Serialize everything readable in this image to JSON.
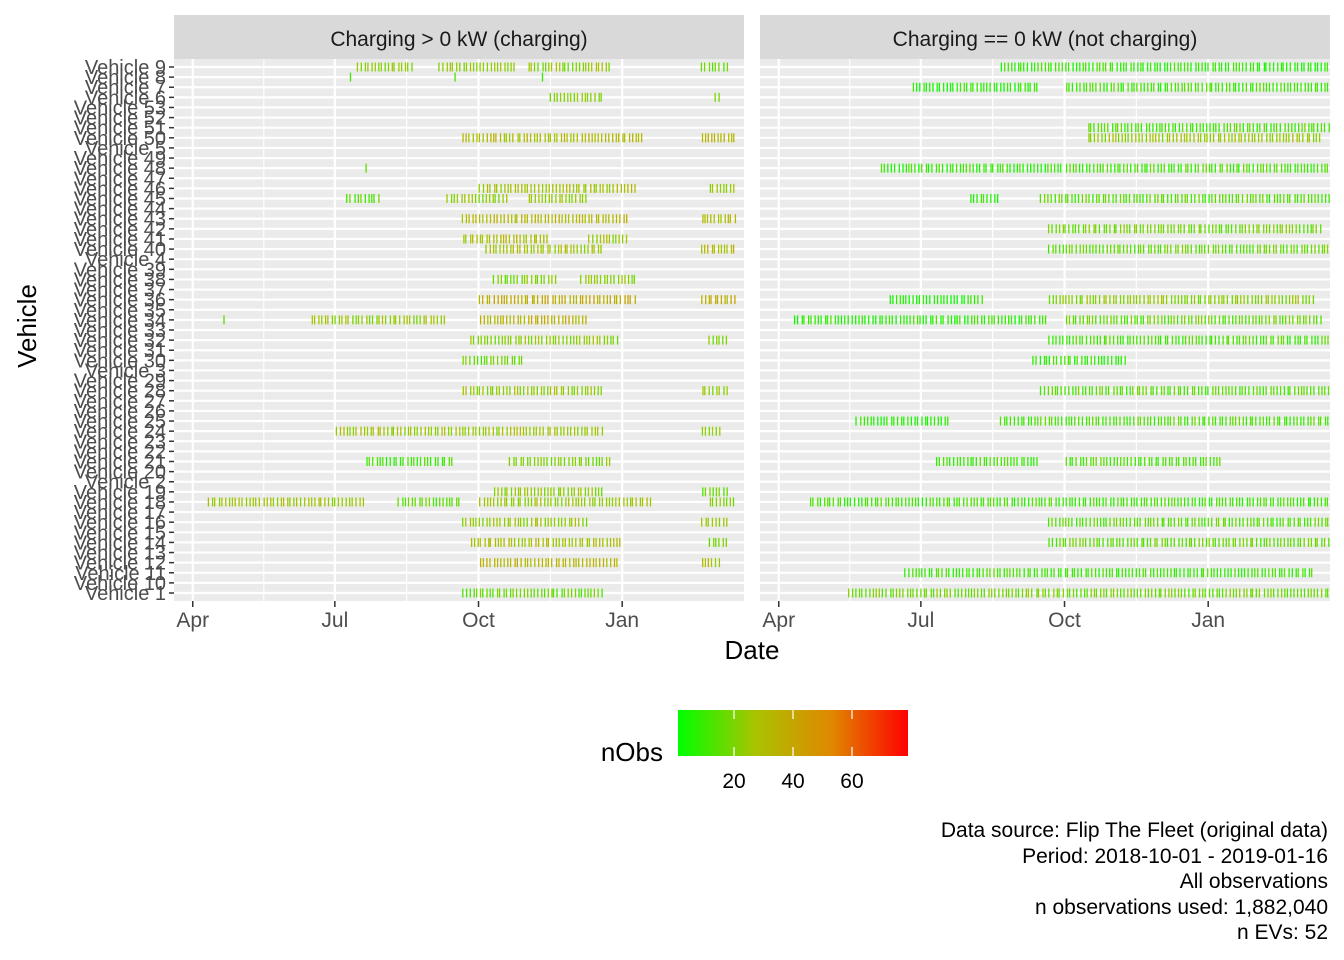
{
  "chart_data": {
    "type": "heatmap",
    "xlabel": "Date",
    "ylabel": "Vehicle",
    "x_ticks": [
      "Apr",
      "Jul",
      "Oct",
      "Jan"
    ],
    "x_tick_dates": [
      "2018-04-01",
      "2018-07-01",
      "2018-10-01",
      "2019-01-01"
    ],
    "xlim": [
      "2018-03-20",
      "2019-03-20"
    ],
    "y_categories": [
      "Vehicle 1",
      "Vehicle 10",
      "Vehicle 11",
      "Vehicle 12",
      "Vehicle 13",
      "Vehicle 14",
      "Vehicle 15",
      "Vehicle 16",
      "Vehicle 17",
      "Vehicle 18",
      "Vehicle 19",
      "Vehicle 2",
      "Vehicle 20",
      "Vehicle 21",
      "Vehicle 22",
      "Vehicle 23",
      "Vehicle 24",
      "Vehicle 25",
      "Vehicle 26",
      "Vehicle 27",
      "Vehicle 28",
      "Vehicle 29",
      "Vehicle 3",
      "Vehicle 30",
      "Vehicle 31",
      "Vehicle 32",
      "Vehicle 33",
      "Vehicle 34",
      "Vehicle 35",
      "Vehicle 36",
      "Vehicle 37",
      "Vehicle 38",
      "Vehicle 39",
      "Vehicle 4",
      "Vehicle 40",
      "Vehicle 41",
      "Vehicle 42",
      "Vehicle 43",
      "Vehicle 44",
      "Vehicle 45",
      "Vehicle 46",
      "Vehicle 47",
      "Vehicle 48",
      "Vehicle 49",
      "Vehicle 5",
      "Vehicle 50",
      "Vehicle 51",
      "Vehicle 52",
      "Vehicle 53",
      "Vehicle 6",
      "Vehicle 7",
      "Vehicle 8",
      "Vehicle 9"
    ],
    "facets": [
      "Charging > 0 kW (charging)",
      "Charging == 0 kW (not charging)"
    ],
    "legend": {
      "title": "nObs",
      "ticks": [
        20,
        40,
        60
      ],
      "range": [
        1,
        79
      ],
      "colors": [
        "#00ff00",
        "#a8c400",
        "#e08800",
        "#ff0000"
      ],
      "placement": "bottom"
    },
    "series": [
      {
        "name": "Charging > 0 kW (charging)",
        "rows": [
          {
            "vehicle": "Vehicle 9",
            "ranges": [
              [
                "2018-07-15",
                "2018-08-20",
                22
              ],
              [
                "2018-09-05",
                "2018-10-25",
                24
              ],
              [
                "2018-11-01",
                "2018-12-25",
                22
              ],
              [
                "2019-02-20",
                "2019-03-10",
                16
              ]
            ]
          },
          {
            "vehicle": "Vehicle 8",
            "ranges": [
              [
                "2018-07-10",
                "2018-07-12",
                6
              ],
              [
                "2018-09-15",
                "2018-09-17",
                6
              ],
              [
                "2018-11-10",
                "2018-11-12",
                6
              ]
            ]
          },
          {
            "vehicle": "Vehicle 6",
            "ranges": [
              [
                "2018-11-15",
                "2018-12-20",
                20
              ],
              [
                "2019-03-01",
                "2019-03-05",
                18
              ]
            ]
          },
          {
            "vehicle": "Vehicle 50",
            "ranges": [
              [
                "2018-09-20",
                "2019-01-15",
                30
              ],
              [
                "2019-02-20",
                "2019-03-15",
                32
              ]
            ]
          },
          {
            "vehicle": "Vehicle 48",
            "ranges": [
              [
                "2018-07-20",
                "2018-07-22",
                10
              ]
            ]
          },
          {
            "vehicle": "Vehicle 46",
            "ranges": [
              [
                "2018-10-01",
                "2019-01-10",
                28
              ],
              [
                "2019-02-25",
                "2019-03-15",
                26
              ]
            ]
          },
          {
            "vehicle": "Vehicle 45",
            "ranges": [
              [
                "2018-07-08",
                "2018-07-30",
                15
              ],
              [
                "2018-09-10",
                "2018-10-20",
                22
              ],
              [
                "2018-11-01",
                "2018-12-10",
                24
              ]
            ]
          },
          {
            "vehicle": "Vehicle 43",
            "ranges": [
              [
                "2018-09-20",
                "2019-01-05",
                32
              ],
              [
                "2019-02-20",
                "2019-03-15",
                30
              ]
            ]
          },
          {
            "vehicle": "Vehicle 41",
            "ranges": [
              [
                "2018-09-20",
                "2018-11-15",
                30
              ],
              [
                "2018-12-10",
                "2019-01-05",
                26
              ]
            ]
          },
          {
            "vehicle": "Vehicle 40",
            "ranges": [
              [
                "2018-10-05",
                "2018-12-20",
                26
              ],
              [
                "2019-02-20",
                "2019-03-15",
                30
              ]
            ]
          },
          {
            "vehicle": "Vehicle 38",
            "ranges": [
              [
                "2018-10-10",
                "2018-11-20",
                20
              ],
              [
                "2018-12-05",
                "2019-01-10",
                22
              ]
            ]
          },
          {
            "vehicle": "Vehicle 36",
            "ranges": [
              [
                "2018-10-01",
                "2019-01-10",
                38
              ],
              [
                "2019-02-20",
                "2019-03-15",
                36
              ]
            ]
          },
          {
            "vehicle": "Vehicle 34",
            "ranges": [
              [
                "2018-04-20",
                "2018-04-22",
                10
              ],
              [
                "2018-06-15",
                "2018-09-10",
                24
              ],
              [
                "2018-10-01",
                "2018-12-10",
                34
              ]
            ]
          },
          {
            "vehicle": "Vehicle 32",
            "ranges": [
              [
                "2018-09-25",
                "2018-12-30",
                22
              ],
              [
                "2019-02-25",
                "2019-03-10",
                20
              ]
            ]
          },
          {
            "vehicle": "Vehicle 30",
            "ranges": [
              [
                "2018-09-20",
                "2018-10-30",
                16
              ]
            ]
          },
          {
            "vehicle": "Vehicle 28",
            "ranges": [
              [
                "2018-09-20",
                "2018-12-20",
                24
              ],
              [
                "2019-02-20",
                "2019-03-10",
                22
              ]
            ]
          },
          {
            "vehicle": "Vehicle 24",
            "ranges": [
              [
                "2018-07-01",
                "2018-12-20",
                26
              ],
              [
                "2019-02-20",
                "2019-03-05",
                22
              ]
            ]
          },
          {
            "vehicle": "Vehicle 21",
            "ranges": [
              [
                "2018-07-20",
                "2018-09-15",
                10
              ],
              [
                "2018-10-20",
                "2018-12-25",
                20
              ]
            ]
          },
          {
            "vehicle": "Vehicle 19",
            "ranges": [
              [
                "2018-10-10",
                "2018-12-20",
                22
              ],
              [
                "2019-02-20",
                "2019-03-10",
                16
              ]
            ]
          },
          {
            "vehicle": "Vehicle 18",
            "ranges": [
              [
                "2018-04-10",
                "2018-07-20",
                26
              ],
              [
                "2018-08-10",
                "2018-09-20",
                14
              ],
              [
                "2018-10-01",
                "2019-01-20",
                24
              ],
              [
                "2019-02-25",
                "2019-03-15",
                22
              ]
            ]
          },
          {
            "vehicle": "Vehicle 16",
            "ranges": [
              [
                "2018-09-20",
                "2018-12-10",
                24
              ],
              [
                "2019-02-20",
                "2019-03-10",
                24
              ]
            ]
          },
          {
            "vehicle": "Vehicle 14",
            "ranges": [
              [
                "2018-09-25",
                "2019-01-01",
                28
              ],
              [
                "2019-02-25",
                "2019-03-10",
                22
              ]
            ]
          },
          {
            "vehicle": "Vehicle 12",
            "ranges": [
              [
                "2018-10-01",
                "2018-12-30",
                34
              ],
              [
                "2019-02-20",
                "2019-03-05",
                30
              ]
            ]
          },
          {
            "vehicle": "Vehicle 1",
            "ranges": [
              [
                "2018-09-20",
                "2018-12-20",
                16
              ]
            ]
          }
        ]
      },
      {
        "name": "Charging == 0 kW (not charging)",
        "rows": [
          {
            "vehicle": "Vehicle 9",
            "ranges": [
              [
                "2018-08-20",
                "2019-03-20",
                8
              ]
            ]
          },
          {
            "vehicle": "Vehicle 7",
            "ranges": [
              [
                "2018-06-25",
                "2018-09-15",
                6
              ],
              [
                "2018-10-01",
                "2019-03-20",
                10
              ]
            ]
          },
          {
            "vehicle": "Vehicle 51",
            "ranges": [
              [
                "2018-10-15",
                "2019-03-20",
                12
              ]
            ]
          },
          {
            "vehicle": "Vehicle 50",
            "ranges": [
              [
                "2018-10-15",
                "2019-03-15",
                24
              ]
            ]
          },
          {
            "vehicle": "Vehicle 48",
            "ranges": [
              [
                "2018-06-05",
                "2018-09-30",
                8
              ],
              [
                "2018-10-01",
                "2019-03-20",
                12
              ]
            ]
          },
          {
            "vehicle": "Vehicle 45",
            "ranges": [
              [
                "2018-08-01",
                "2018-08-20",
                6
              ],
              [
                "2018-09-15",
                "2019-03-20",
                14
              ]
            ]
          },
          {
            "vehicle": "Vehicle 42",
            "ranges": [
              [
                "2018-09-20",
                "2019-03-15",
                18
              ]
            ]
          },
          {
            "vehicle": "Vehicle 40",
            "ranges": [
              [
                "2018-09-20",
                "2019-03-20",
                16
              ]
            ]
          },
          {
            "vehicle": "Vehicle 36",
            "ranges": [
              [
                "2018-06-10",
                "2018-08-10",
                6
              ],
              [
                "2018-09-20",
                "2019-03-10",
                22
              ]
            ]
          },
          {
            "vehicle": "Vehicle 34",
            "ranges": [
              [
                "2018-04-10",
                "2018-09-20",
                8
              ],
              [
                "2018-10-01",
                "2019-03-15",
                16
              ]
            ]
          },
          {
            "vehicle": "Vehicle 32",
            "ranges": [
              [
                "2018-09-20",
                "2019-03-20",
                12
              ]
            ]
          },
          {
            "vehicle": "Vehicle 30",
            "ranges": [
              [
                "2018-09-10",
                "2018-11-10",
                8
              ]
            ]
          },
          {
            "vehicle": "Vehicle 28",
            "ranges": [
              [
                "2018-09-15",
                "2019-03-20",
                14
              ]
            ]
          },
          {
            "vehicle": "Vehicle 25",
            "ranges": [
              [
                "2018-05-20",
                "2018-07-20",
                6
              ],
              [
                "2018-08-20",
                "2019-03-20",
                12
              ]
            ]
          },
          {
            "vehicle": "Vehicle 21",
            "ranges": [
              [
                "2018-07-10",
                "2018-09-15",
                10
              ],
              [
                "2018-10-01",
                "2019-01-10",
                12
              ]
            ]
          },
          {
            "vehicle": "Vehicle 18",
            "ranges": [
              [
                "2018-04-20",
                "2019-03-20",
                10
              ]
            ]
          },
          {
            "vehicle": "Vehicle 16",
            "ranges": [
              [
                "2018-09-20",
                "2019-03-20",
                14
              ]
            ]
          },
          {
            "vehicle": "Vehicle 14",
            "ranges": [
              [
                "2018-09-20",
                "2019-03-20",
                16
              ]
            ]
          },
          {
            "vehicle": "Vehicle 11",
            "ranges": [
              [
                "2018-06-20",
                "2019-03-10",
                10
              ]
            ]
          },
          {
            "vehicle": "Vehicle 1",
            "ranges": [
              [
                "2018-05-15",
                "2019-03-20",
                18
              ]
            ]
          }
        ]
      }
    ]
  },
  "caption": {
    "line1": "Data source: Flip The Fleet (original data)",
    "line2": "Period: 2018-10-01 - 2019-01-16",
    "line3": "All observations",
    "line4": "n observations used: 1,882,040",
    "line5": "n EVs: 52"
  }
}
